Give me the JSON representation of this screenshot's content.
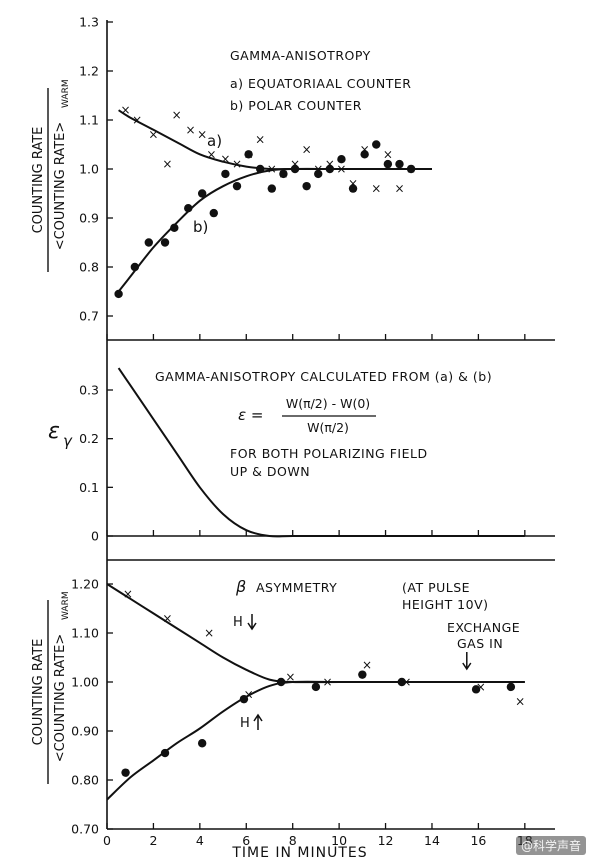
{
  "chart_data": [
    {
      "type": "scatter",
      "ylabel_top": "COUNTING RATE",
      "ylabel_bottom": "<COUNTING RATE>",
      "ylabel_sub": "WARM",
      "xlim": [
        0,
        18
      ],
      "ylim": [
        0.65,
        1.3
      ],
      "yticks": [
        "0.7",
        "0.8",
        "0.9",
        "1.0",
        "1.1",
        "1.2",
        "1.3"
      ],
      "annotations": {
        "title": "GAMMA-ANISOTROPY",
        "legend_a": "a) EQUATORIAAL COUNTER",
        "legend_b": "b) POLAR COUNTER",
        "curve_a_label": "a)",
        "curve_b_label": "b)"
      },
      "series": [
        {
          "name": "a) EQUATORIAL COUNTER",
          "marker": "x",
          "x": [
            0.8,
            1.3,
            2.0,
            2.6,
            3.0,
            3.6,
            4.1,
            4.5,
            5.1,
            5.6,
            6.1,
            6.6,
            7.1,
            7.6,
            8.1,
            8.6,
            9.1,
            9.6,
            10.1,
            10.6,
            11.1,
            11.6,
            12.1,
            12.6,
            13.1
          ],
          "y": [
            1.12,
            1.1,
            1.07,
            1.01,
            1.11,
            1.08,
            1.07,
            1.03,
            1.02,
            1.01,
            1.03,
            1.06,
            1.0,
            0.99,
            1.01,
            1.04,
            1.0,
            1.01,
            1.0,
            0.97,
            1.04,
            0.96,
            1.03,
            0.96,
            1.0
          ]
        },
        {
          "name": "b) POLAR COUNTER",
          "marker": "dot",
          "x": [
            0.5,
            1.2,
            1.8,
            2.5,
            2.9,
            3.5,
            4.1,
            4.6,
            5.1,
            5.6,
            6.1,
            6.6,
            7.1,
            7.6,
            8.1,
            8.6,
            9.1,
            9.6,
            10.1,
            10.6,
            11.1,
            11.6,
            12.1,
            12.6,
            13.1
          ],
          "y": [
            0.745,
            0.8,
            0.85,
            0.85,
            0.88,
            0.92,
            0.95,
            0.91,
            0.99,
            0.965,
            1.03,
            1.0,
            0.96,
            0.99,
            1.0,
            0.965,
            0.99,
            1.0,
            1.02,
            0.96,
            1.03,
            1.05,
            1.01,
            1.01,
            1.0
          ]
        }
      ],
      "fit_curves": [
        {
          "label": "a)",
          "x": [
            0.5,
            1,
            2,
            3,
            4,
            5,
            6,
            7,
            8,
            10,
            12,
            14
          ],
          "y": [
            1.12,
            1.105,
            1.08,
            1.055,
            1.03,
            1.015,
            1.005,
            1.0,
            1.0,
            1.0,
            1.0,
            1.0
          ]
        },
        {
          "label": "b)",
          "x": [
            0.5,
            1,
            2,
            3,
            4,
            5,
            6,
            7,
            8,
            10,
            12,
            14
          ],
          "y": [
            0.75,
            0.78,
            0.84,
            0.89,
            0.935,
            0.965,
            0.985,
            0.997,
            1.0,
            1.0,
            1.0,
            1.0
          ]
        }
      ]
    },
    {
      "type": "line",
      "ylabel": "ε",
      "ylabel_sub": "γ",
      "xlim": [
        0,
        18
      ],
      "ylim": [
        -0.01,
        0.37
      ],
      "yticks": [
        "0",
        "0.1",
        "0.2",
        "0.3"
      ],
      "annotations": {
        "title": "GAMMA-ANISOTROPY CALCULATED FROM (a) & (b)",
        "eps": "ε =",
        "numerator": "W(π/2) - W(0)",
        "denominator": "W(π/2)",
        "note_1": "FOR BOTH POLARIZING FIELD",
        "note_2": "UP & DOWN"
      },
      "series": [
        {
          "x": [
            0.5,
            1,
            2,
            3,
            4,
            5,
            6,
            7,
            8,
            10,
            12,
            14,
            18
          ],
          "y": [
            0.345,
            0.31,
            0.24,
            0.17,
            0.1,
            0.045,
            0.012,
            0.0,
            0.0,
            0.0,
            0.0,
            0.0,
            0.0
          ]
        }
      ]
    },
    {
      "type": "scatter",
      "ylabel_top": "COUNTING RATE",
      "ylabel_bottom": "<COUNTING RATE>",
      "ylabel_sub": "WARM",
      "xlabel": "TIME IN MINUTES",
      "xlim": [
        0,
        18
      ],
      "ylim": [
        0.7,
        1.24
      ],
      "xticks": [
        "0",
        "2",
        "4",
        "6",
        "8",
        "10",
        "12",
        "14",
        "16",
        "18"
      ],
      "yticks": [
        "0.70",
        "0.80",
        "0.90",
        "1.00",
        "1.10",
        "1.20"
      ],
      "annotations": {
        "title": "β ASYMMETRY",
        "pulse_1": "(AT PULSE",
        "pulse_2": "HEIGHT 10V)",
        "h_down": "H",
        "h_up": "H",
        "gas_1": "EXCHANGE",
        "gas_2": "GAS IN",
        "gas_arrow_x": 15.5
      },
      "series": [
        {
          "name": "H down",
          "marker": "x",
          "x": [
            0.9,
            2.6,
            4.4,
            6.1,
            7.9,
            9.5,
            11.2,
            12.9,
            16.1,
            17.8
          ],
          "y": [
            1.18,
            1.13,
            1.1,
            0.975,
            1.01,
            1.0,
            1.035,
            1.0,
            0.99,
            0.96
          ]
        },
        {
          "name": "H up",
          "marker": "dot",
          "x": [
            0.8,
            2.5,
            4.1,
            5.9,
            7.5,
            9.0,
            11.0,
            12.7,
            15.9,
            17.4
          ],
          "y": [
            0.815,
            0.855,
            0.875,
            0.965,
            1.0,
            0.99,
            1.015,
            1.0,
            0.985,
            0.99
          ]
        }
      ],
      "fit_curves": [
        {
          "label": "H down",
          "x": [
            0,
            1,
            2,
            3,
            4,
            5,
            6,
            7,
            8,
            10,
            12,
            14,
            16,
            18
          ],
          "y": [
            1.2,
            1.17,
            1.14,
            1.11,
            1.08,
            1.05,
            1.025,
            1.005,
            1.0,
            1.0,
            1.0,
            1.0,
            1.0,
            1.0
          ]
        },
        {
          "label": "H up",
          "x": [
            0,
            1,
            2,
            3,
            4,
            5,
            6,
            7,
            8,
            10,
            12,
            14,
            16,
            18
          ],
          "y": [
            0.76,
            0.805,
            0.84,
            0.875,
            0.905,
            0.94,
            0.97,
            0.992,
            1.0,
            1.0,
            1.0,
            1.0,
            1.0,
            1.0
          ]
        }
      ]
    }
  ],
  "watermark": "@科学声音"
}
